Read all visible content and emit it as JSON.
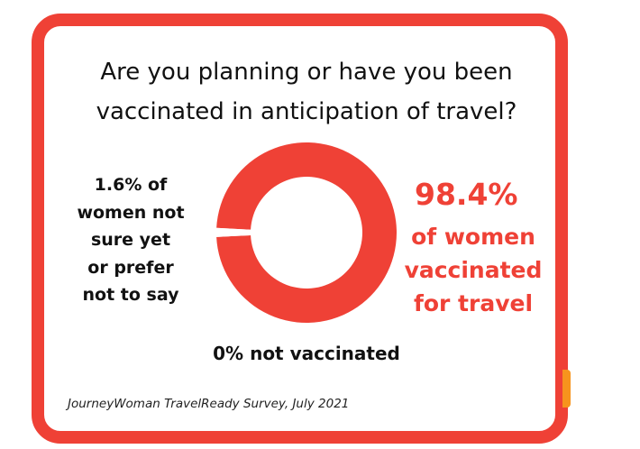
{
  "chart_data": {
    "type": "donut",
    "title": "Are you planning or have you been\nvaccinated in anticipation of travel?",
    "categories": [
      "of women\nvaccinated\nfor travel",
      "of\nwomen not\nsure yet\nor prefer\nnot to say",
      "not vaccinated"
    ],
    "values": [
      98.4,
      1.6,
      0
    ],
    "value_labels": [
      "98.4%",
      "1.6%",
      "0%"
    ],
    "colors": [
      "#ef4136",
      "#ffffff",
      "#ffffff"
    ],
    "source": "JourneyWoman TravelReady Survey, July 2021"
  }
}
